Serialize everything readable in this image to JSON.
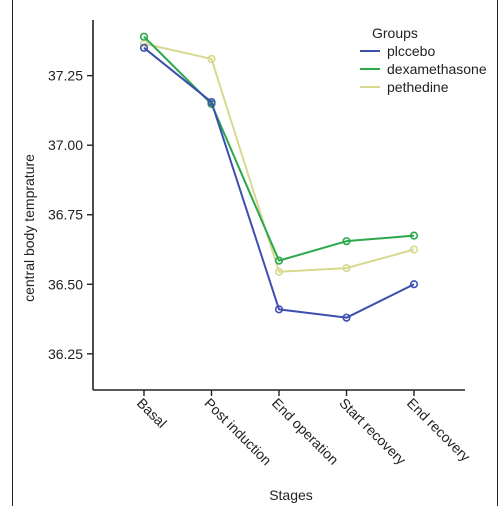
{
  "chart_data": {
    "type": "line",
    "title": "",
    "xlabel": "Stages",
    "ylabel": "central body temprature",
    "categories": [
      "Basal",
      "Post induction",
      "End operation",
      "Start recovery",
      "End recovery"
    ],
    "ylim": [
      36.12,
      37.45
    ],
    "yticks": [
      "36.25",
      "36.50",
      "36.75",
      "37.00",
      "37.25"
    ],
    "grid": false,
    "legend": {
      "title": "Groups",
      "placement": "top-right"
    },
    "series": [
      {
        "name": "plccebo",
        "color": "#3d4fb0",
        "values": [
          37.35,
          37.155,
          36.41,
          36.38,
          36.5
        ]
      },
      {
        "name": "dexamethasone",
        "color": "#2ba84a",
        "values": [
          37.39,
          37.148,
          36.585,
          36.655,
          36.675
        ]
      },
      {
        "name": "pethedine",
        "color": "#d8d890",
        "values": [
          37.365,
          37.31,
          36.545,
          36.558,
          36.625
        ]
      }
    ]
  }
}
